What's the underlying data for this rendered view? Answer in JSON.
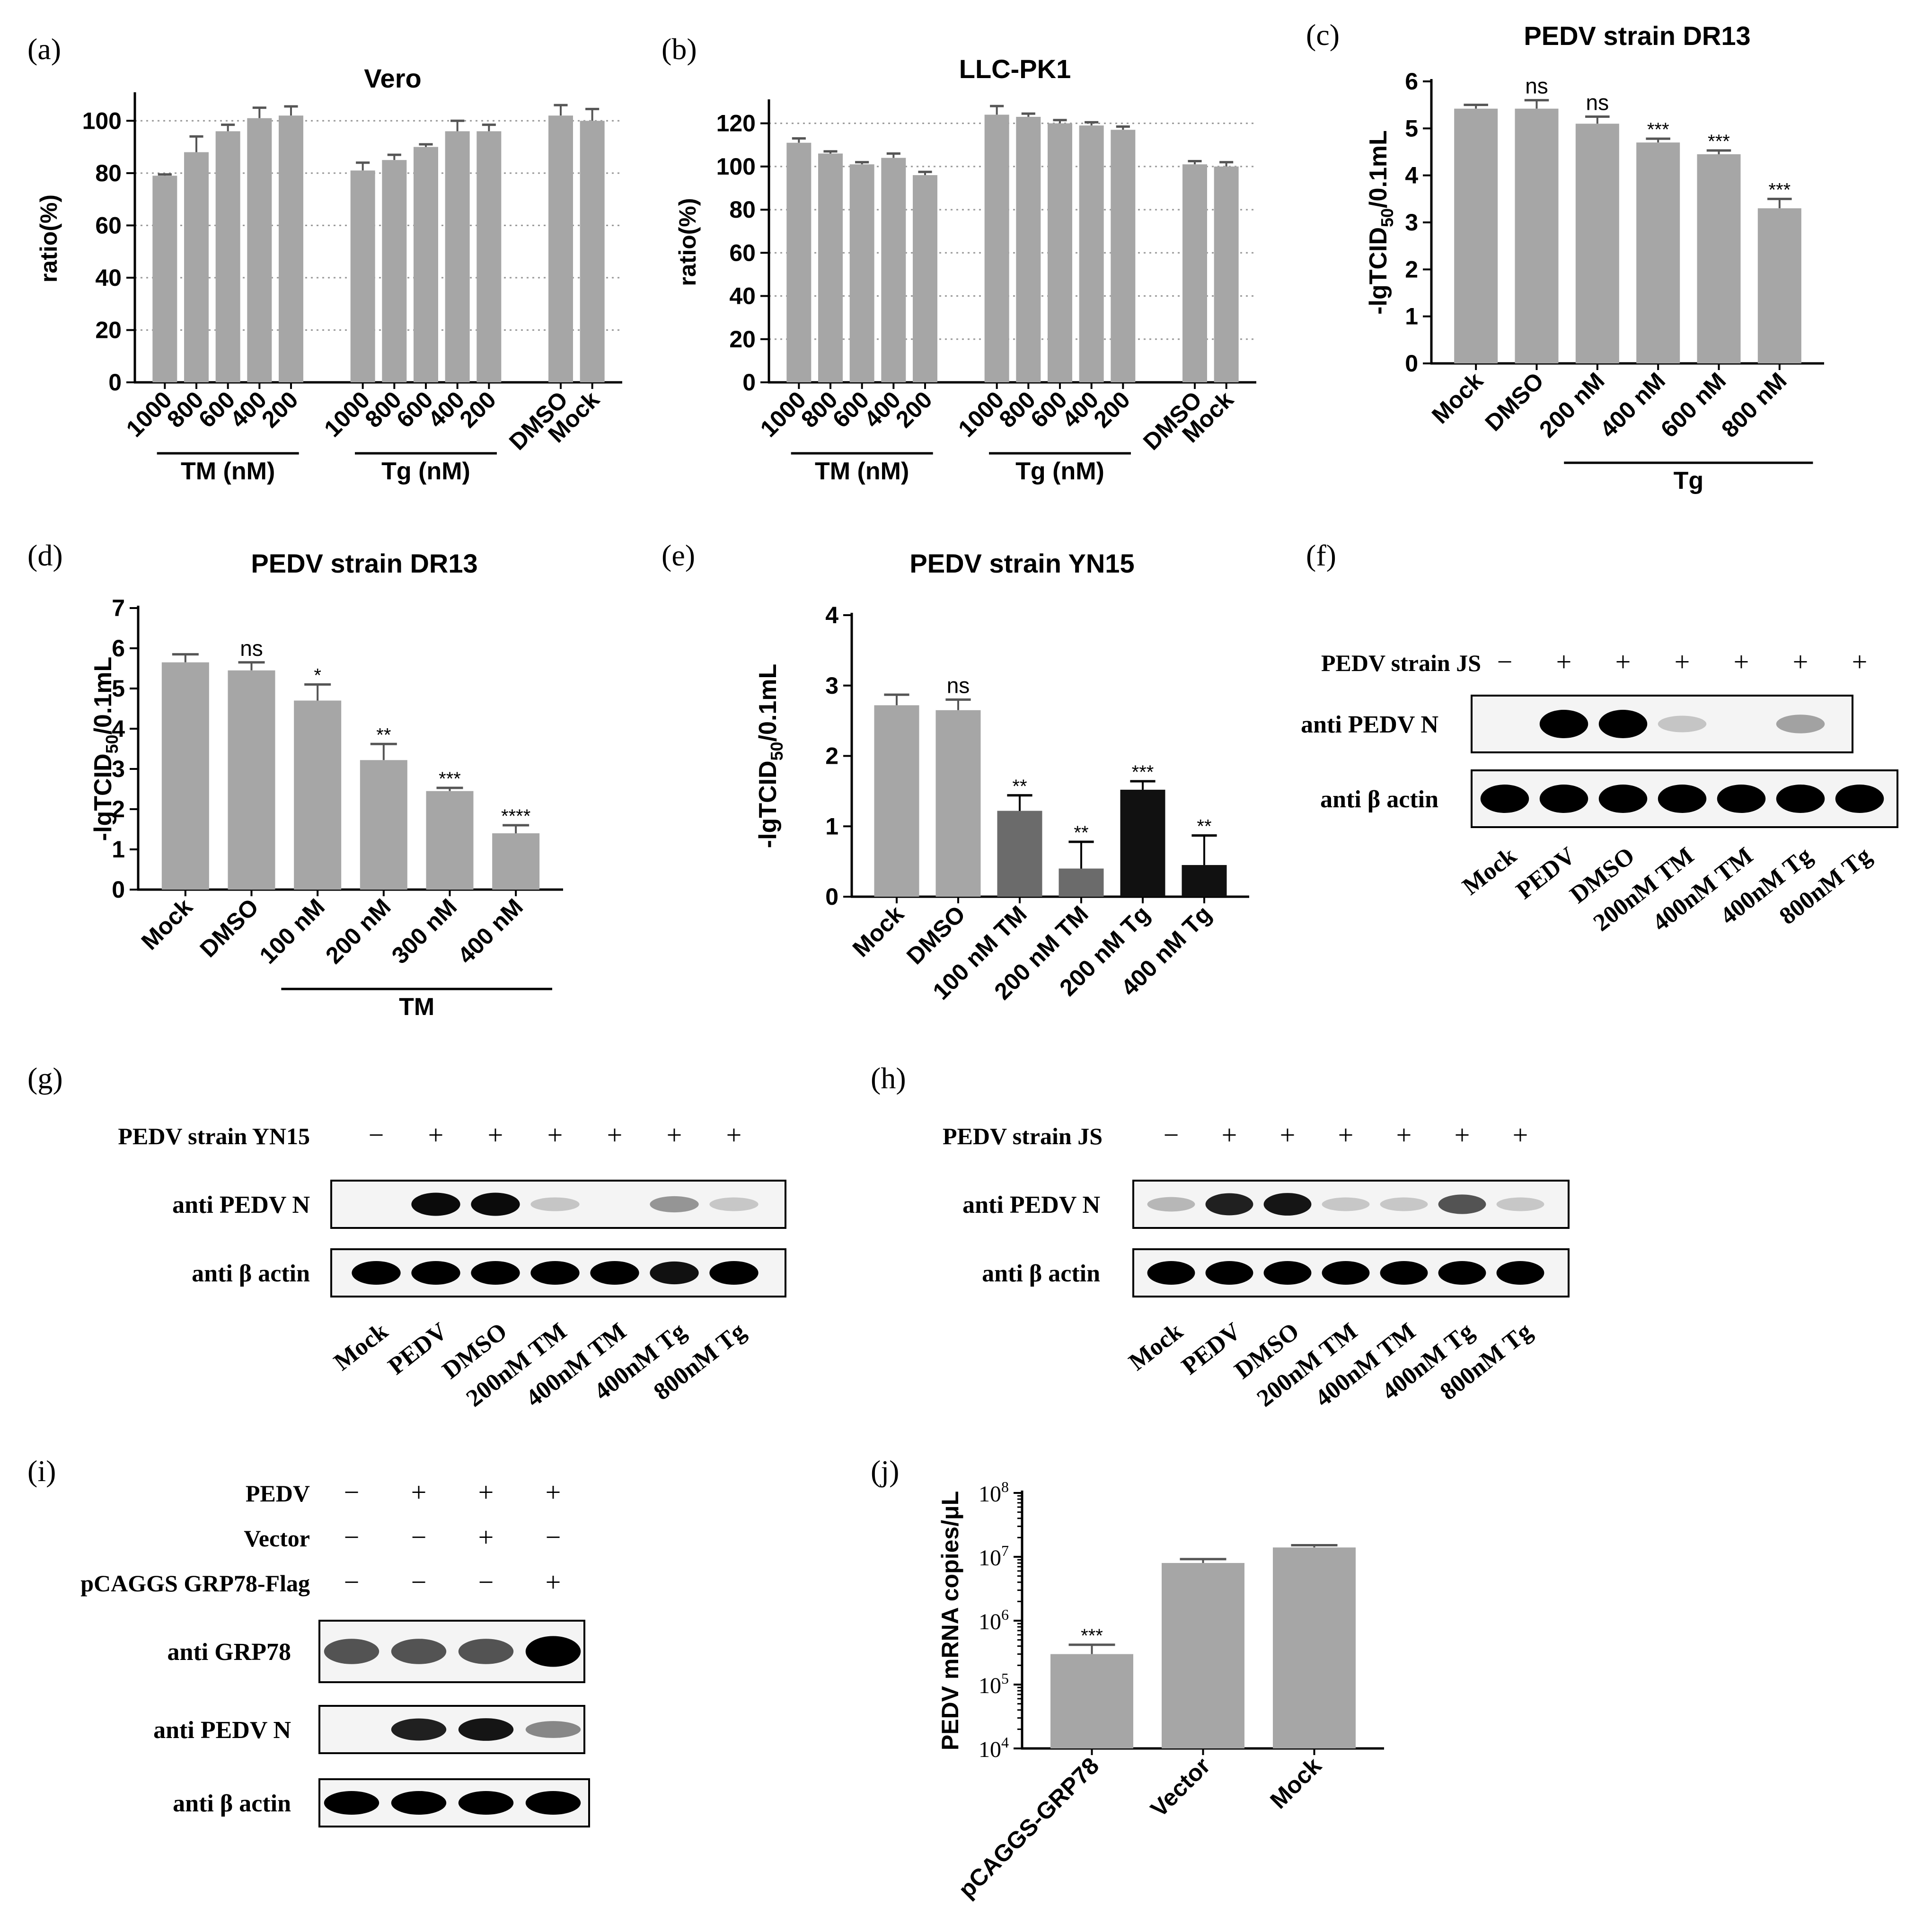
{
  "figure": {
    "colors": {
      "bar": "#a6a6a6",
      "dark_bar": "#6b6b6b",
      "black_bar": "#111111",
      "grid": "#9a9a9a",
      "text": "#000000"
    },
    "panels": [
      {
        "id": "a",
        "label": "(a)",
        "title": "Vero",
        "ylabel": "ratio(%)",
        "ylim": [
          0,
          110
        ],
        "yticks": [
          0,
          20,
          40,
          60,
          80,
          100
        ],
        "grid": true,
        "categories": [
          "1000",
          "800",
          "600",
          "400",
          "200",
          "1000",
          "800",
          "600",
          "400",
          "200",
          "DMSO",
          "Mock"
        ],
        "values": [
          79,
          88,
          96,
          101,
          102,
          81,
          85,
          90,
          96,
          96,
          102,
          100
        ],
        "errors": [
          0.5,
          6,
          2.5,
          4,
          3.5,
          3,
          2,
          1,
          4,
          2.5,
          4,
          4.5
        ],
        "groups": [
          {
            "label": "TM (nM)",
            "from": 0,
            "to": 4
          },
          {
            "label": "Tg (nM)",
            "from": 5,
            "to": 9
          }
        ],
        "annotations": []
      },
      {
        "id": "b",
        "label": "(b)",
        "title": "LLC-PK1",
        "ylabel": "ratio(%)",
        "ylim": [
          0,
          130
        ],
        "yticks": [
          0,
          20,
          40,
          60,
          80,
          100,
          120
        ],
        "grid": true,
        "categories": [
          "1000",
          "800",
          "600",
          "400",
          "200",
          "1000",
          "800",
          "600",
          "400",
          "200",
          "DMSO",
          "Mock"
        ],
        "values": [
          111,
          106,
          101,
          104,
          96,
          124,
          123,
          120,
          119,
          117,
          101,
          100
        ],
        "errors": [
          2,
          1,
          1,
          2,
          1.5,
          4,
          1.5,
          1.5,
          1.5,
          1.5,
          1.5,
          2
        ],
        "groups": [
          {
            "label": "TM (nM)",
            "from": 0,
            "to": 4
          },
          {
            "label": "Tg (nM)",
            "from": 5,
            "to": 9
          }
        ],
        "annotations": []
      },
      {
        "id": "c",
        "label": "(c)",
        "title": "PEDV strain DR13",
        "ylabel": "-lgTCID50/0.1mL",
        "ylim": [
          0,
          6
        ],
        "yticks": [
          0,
          1,
          2,
          3,
          4,
          5,
          6
        ],
        "grid": false,
        "categories": [
          "Mock",
          "DMSO",
          "200 nM",
          "400 nM",
          "600 nM",
          "800 nM"
        ],
        "values": [
          5.42,
          5.42,
          5.1,
          4.7,
          4.45,
          3.3
        ],
        "errors": [
          0.08,
          0.18,
          0.15,
          0.08,
          0.08,
          0.2
        ],
        "groups": [
          {
            "label": "Tg",
            "from": 2,
            "to": 5
          }
        ],
        "annotations": [
          "",
          "ns",
          "ns",
          "***",
          "***",
          "***"
        ]
      },
      {
        "id": "d",
        "label": "(d)",
        "title": "PEDV strain DR13",
        "ylabel": "-lgTCID50/0.1mL",
        "ylim": [
          0,
          7
        ],
        "yticks": [
          0,
          1,
          2,
          3,
          4,
          5,
          6,
          7
        ],
        "grid": false,
        "categories": [
          "Mock",
          "DMSO",
          "100 nM",
          "200 nM",
          "300 nM",
          "400 nM"
        ],
        "values": [
          5.65,
          5.45,
          4.7,
          3.22,
          2.45,
          1.4
        ],
        "errors": [
          0.2,
          0.2,
          0.4,
          0.4,
          0.08,
          0.2
        ],
        "groups": [
          {
            "label": "TM",
            "from": 2,
            "to": 5
          }
        ],
        "annotations": [
          "",
          "ns",
          "*",
          "**",
          "***",
          "****"
        ]
      },
      {
        "id": "e",
        "label": "(e)",
        "title": "PEDV strain YN15",
        "ylabel": "-lgTCID50/0.1mL",
        "ylim": [
          0,
          4
        ],
        "yticks": [
          0,
          1,
          2,
          3,
          4
        ],
        "grid": false,
        "categories": [
          "Mock",
          "DMSO",
          "100 nM TM",
          "200 nM TM",
          "200 nM Tg",
          "400 nM Tg"
        ],
        "values": [
          2.72,
          2.65,
          1.22,
          0.4,
          1.52,
          0.45
        ],
        "errors": [
          0.15,
          0.15,
          0.22,
          0.38,
          0.12,
          0.42
        ],
        "bar_colors": [
          "bar",
          "bar",
          "dark_bar",
          "dark_bar",
          "black_bar",
          "black_bar"
        ],
        "groups": [],
        "annotations": [
          "",
          "ns",
          "**",
          "**",
          "***",
          "**"
        ]
      },
      {
        "id": "j",
        "label": "(j)",
        "title": "",
        "ylabel": "PEDV mRNA copies/μL",
        "scale": "log",
        "ylim": [
          10000,
          100000000
        ],
        "yticks": [
          "10^4",
          "10^5",
          "10^6",
          "10^7",
          "10^8"
        ],
        "ytick_values": [
          10000,
          100000,
          1000000,
          10000000,
          100000000
        ],
        "grid": false,
        "categories": [
          "pCAGGS-GRP78",
          "Vector",
          "Mock"
        ],
        "values": [
          300000,
          8000000,
          14000000
        ],
        "errors_hi": [
          420000,
          9200000,
          15200000
        ],
        "groups": [],
        "annotations": [
          "***",
          "",
          ""
        ]
      }
    ],
    "blots": [
      {
        "id": "f",
        "label": "(f)",
        "condition": "PEDV strain JS",
        "signs": [
          "−",
          "+",
          "+",
          "+",
          "+",
          "+",
          "+"
        ],
        "lanes": [
          "Mock",
          "PEDV",
          "DMSO",
          "200nM TM",
          "400nM TM",
          "400nM Tg",
          "800nM Tg"
        ],
        "rows": [
          {
            "label": "anti PEDV N",
            "intensity": [
              0,
              1,
              1,
              0.05,
              0,
              0.22,
              0
            ]
          },
          {
            "label": "anti β actin",
            "intensity": [
              1,
              1,
              1,
              1,
              1,
              1,
              1
            ]
          }
        ]
      },
      {
        "id": "g",
        "label": "(g)",
        "condition": "PEDV strain YN15",
        "signs": [
          "−",
          "+",
          "+",
          "+",
          "+",
          "+",
          "+"
        ],
        "lanes": [
          "Mock",
          "PEDV",
          "DMSO",
          "200nM TM",
          "400nM TM",
          "400nM Tg",
          "800nM Tg"
        ],
        "rows": [
          {
            "label": "anti PEDV N",
            "intensity": [
              0,
              0.95,
              0.95,
              0.05,
              0,
              0.28,
              0.04
            ]
          },
          {
            "label": "anti β actin",
            "intensity": [
              1,
              1,
              1,
              1,
              1,
              0.92,
              1
            ]
          }
        ]
      },
      {
        "id": "h",
        "label": "(h)",
        "condition": "PEDV strain JS",
        "signs": [
          "−",
          "+",
          "+",
          "+",
          "+",
          "+",
          "+"
        ],
        "lanes": [
          "Mock",
          "PEDV",
          "DMSO",
          "200nM TM",
          "400nM TM",
          "400nM Tg",
          "800nM Tg"
        ],
        "rows": [
          {
            "label": "anti PEDV N",
            "intensity": [
              0.12,
              0.85,
              0.9,
              0.04,
              0.04,
              0.6,
              0.04
            ]
          },
          {
            "label": "anti β actin",
            "intensity": [
              1,
              1,
              1,
              1,
              1,
              1,
              1
            ]
          }
        ]
      },
      {
        "id": "i",
        "label": "(i)",
        "conditions": [
          {
            "label": "PEDV",
            "signs": [
              "−",
              "+",
              "+",
              "+"
            ]
          },
          {
            "label": "Vector",
            "signs": [
              "−",
              "−",
              "+",
              "−"
            ]
          },
          {
            "label": "pCAGGS GRP78-Flag",
            "signs": [
              "−",
              "−",
              "−",
              "+"
            ]
          }
        ],
        "rows": [
          {
            "label": "anti GRP78",
            "intensity": [
              0.6,
              0.6,
              0.6,
              1
            ]
          },
          {
            "label": "anti PEDV N",
            "intensity": [
              0,
              0.85,
              0.9,
              0.35
            ]
          },
          {
            "label": "anti β actin",
            "intensity": [
              1,
              1,
              1,
              1
            ]
          }
        ]
      }
    ]
  }
}
